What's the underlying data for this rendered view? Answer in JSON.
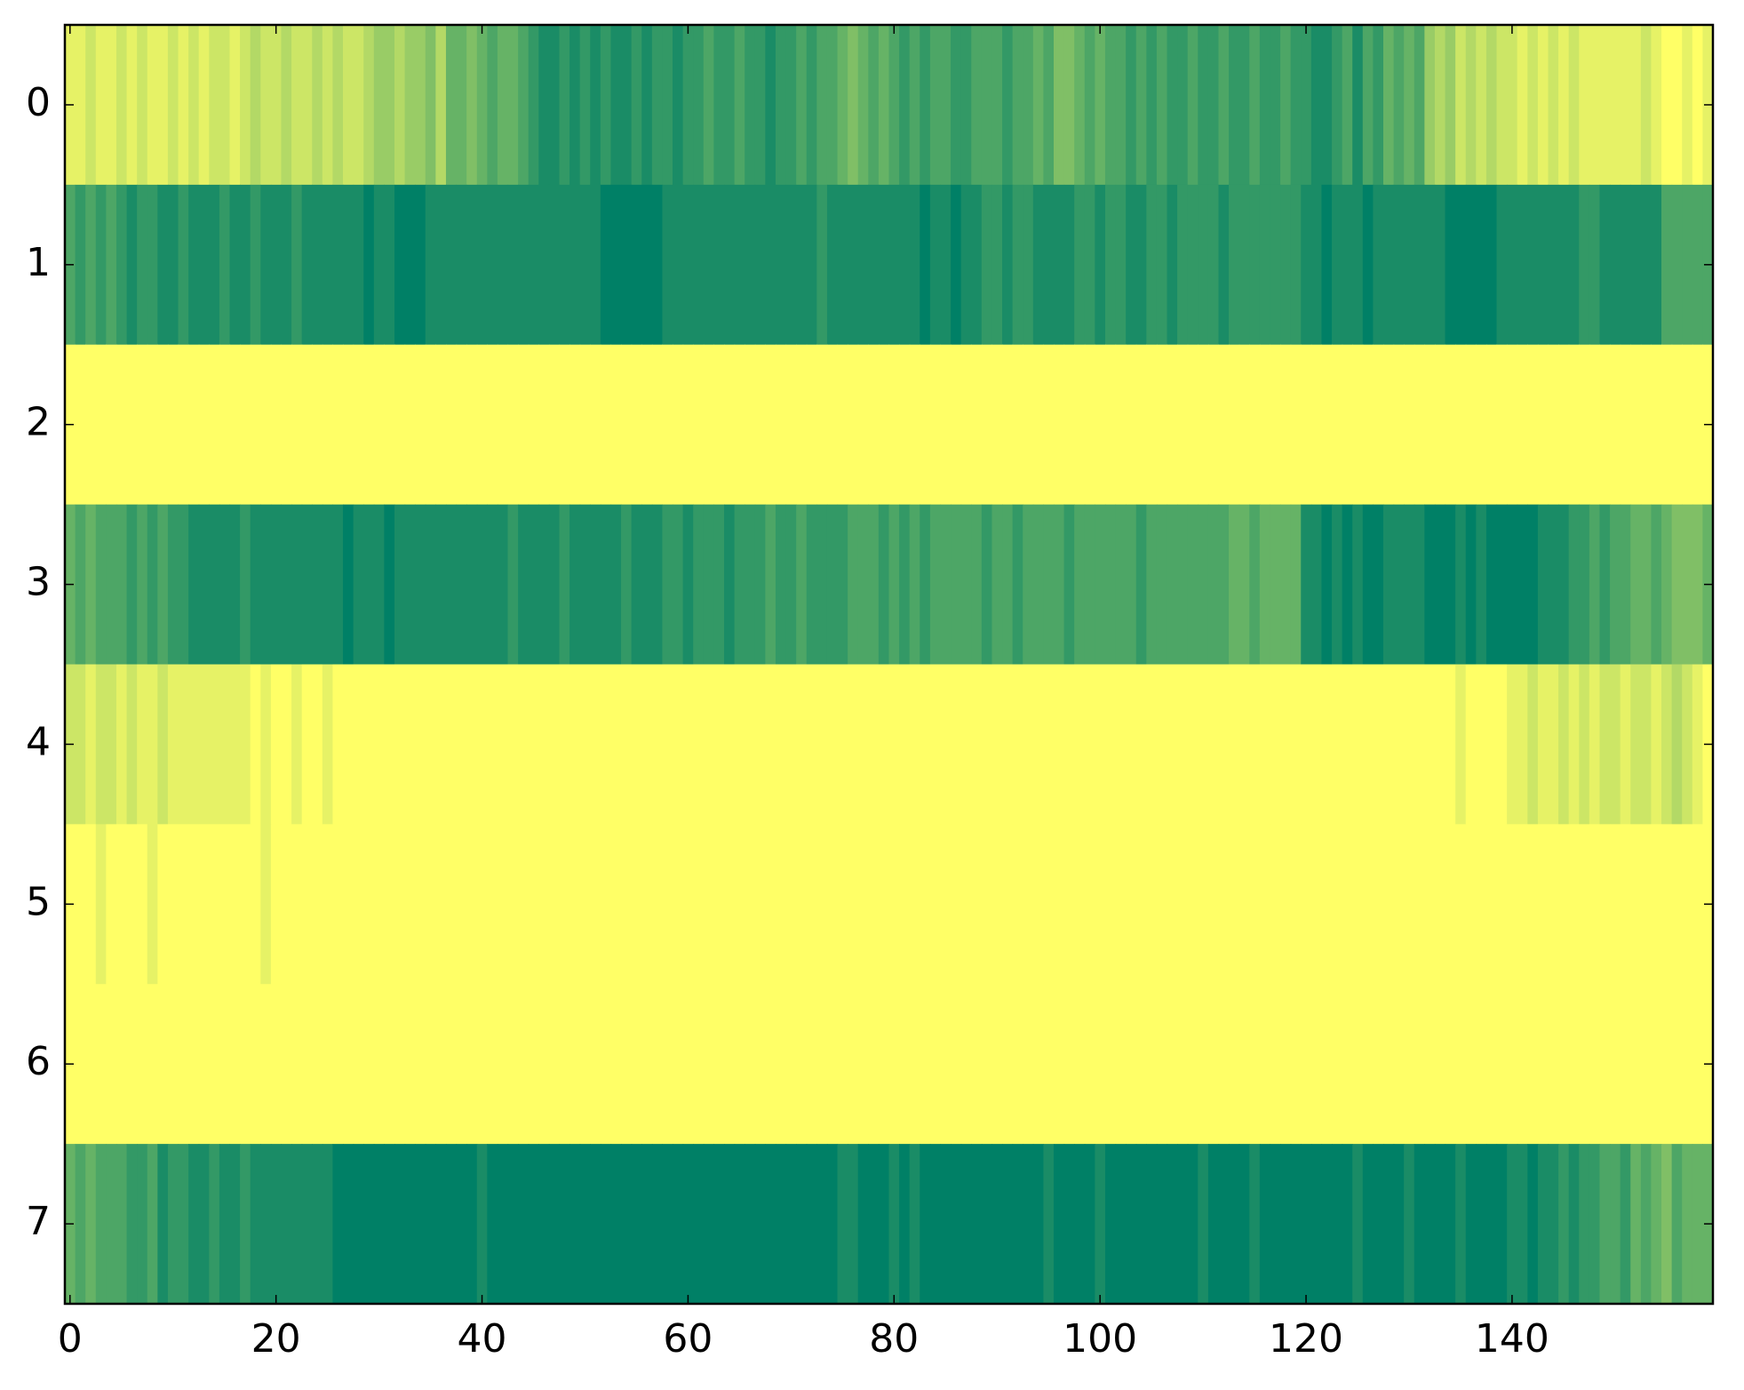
{
  "chart_data": {
    "type": "heatmap",
    "colormap": "summer",
    "clim": [
      0,
      1
    ],
    "xlim": [
      -0.5,
      159.5
    ],
    "ylim": [
      7.5,
      -0.5
    ],
    "xticks": [
      0,
      20,
      40,
      60,
      80,
      100,
      120,
      140
    ],
    "yticks": [
      0,
      1,
      2,
      3,
      4,
      5,
      6,
      7
    ],
    "z": [
      [
        0.9,
        0.9,
        0.8,
        0.9,
        0.9,
        0.8,
        0.9,
        0.8,
        0.9,
        0.9,
        0.8,
        0.9,
        0.8,
        0.9,
        0.8,
        0.8,
        0.9,
        0.8,
        0.7,
        0.8,
        0.8,
        0.7,
        0.8,
        0.8,
        0.7,
        0.8,
        0.7,
        0.8,
        0.8,
        0.7,
        0.6,
        0.6,
        0.7,
        0.6,
        0.6,
        0.5,
        0.7,
        0.4,
        0.4,
        0.5,
        0.4,
        0.3,
        0.4,
        0.4,
        0.3,
        0.2,
        0.1,
        0.1,
        0.2,
        0.1,
        0.2,
        0.1,
        0.2,
        0.1,
        0.1,
        0.2,
        0.1,
        0.2,
        0.2,
        0.1,
        0.2,
        0.2,
        0.3,
        0.2,
        0.2,
        0.3,
        0.2,
        0.2,
        0.1,
        0.2,
        0.2,
        0.3,
        0.2,
        0.3,
        0.3,
        0.4,
        0.5,
        0.4,
        0.3,
        0.4,
        0.3,
        0.2,
        0.3,
        0.2,
        0.3,
        0.3,
        0.2,
        0.2,
        0.3,
        0.3,
        0.3,
        0.2,
        0.3,
        0.3,
        0.4,
        0.3,
        0.5,
        0.5,
        0.4,
        0.3,
        0.4,
        0.3,
        0.3,
        0.2,
        0.3,
        0.2,
        0.3,
        0.2,
        0.2,
        0.3,
        0.2,
        0.2,
        0.3,
        0.2,
        0.2,
        0.3,
        0.2,
        0.2,
        0.3,
        0.2,
        0.2,
        0.1,
        0.1,
        0.2,
        0.3,
        0.1,
        0.3,
        0.2,
        0.4,
        0.3,
        0.4,
        0.3,
        0.6,
        0.7,
        0.6,
        0.8,
        0.7,
        0.8,
        0.7,
        0.8,
        0.8,
        0.9,
        0.8,
        0.9,
        0.8,
        0.9,
        0.8,
        0.9,
        0.9,
        0.9,
        0.9,
        0.9,
        0.9,
        0.8,
        0.9,
        1,
        1,
        0.9,
        1,
        0.9
      ],
      [
        0.3,
        0.2,
        0.3,
        0.2,
        0.3,
        0.2,
        0.1,
        0.2,
        0.2,
        0.1,
        0.1,
        0.2,
        0.1,
        0.1,
        0.1,
        0.2,
        0.1,
        0.1,
        0.2,
        0.1,
        0.1,
        0.1,
        0.2,
        0.1,
        0.1,
        0.1,
        0.1,
        0.1,
        0.1,
        0,
        0.1,
        0.1,
        0,
        0,
        0,
        0.1,
        0.1,
        0.1,
        0.1,
        0.1,
        0.1,
        0.1,
        0.1,
        0.1,
        0.1,
        0.1,
        0.1,
        0.1,
        0.1,
        0.1,
        0.1,
        0.1,
        0,
        0,
        0,
        0,
        0,
        0,
        0.1,
        0.1,
        0.1,
        0.1,
        0.1,
        0.1,
        0.1,
        0.1,
        0.1,
        0.1,
        0.1,
        0.1,
        0.1,
        0.1,
        0.1,
        0.2,
        0.1,
        0.1,
        0.1,
        0.1,
        0.1,
        0.1,
        0.1,
        0.1,
        0.1,
        0,
        0.1,
        0.1,
        0,
        0.1,
        0.1,
        0.2,
        0.2,
        0.1,
        0.2,
        0.2,
        0.1,
        0.1,
        0.1,
        0.1,
        0.2,
        0.2,
        0.1,
        0.2,
        0.2,
        0.1,
        0.1,
        0.2,
        0.2,
        0.1,
        0.2,
        0.2,
        0.2,
        0.2,
        0.1,
        0.2,
        0.2,
        0.2,
        0.2,
        0.2,
        0.2,
        0.2,
        0.1,
        0.1,
        0,
        0.1,
        0.1,
        0.1,
        0,
        0.1,
        0.1,
        0.1,
        0.1,
        0.1,
        0.1,
        0.1,
        0,
        0,
        0,
        0,
        0,
        0.1,
        0.1,
        0.1,
        0.1,
        0.1,
        0.1,
        0.1,
        0.1,
        0.2,
        0.2,
        0.1,
        0.1,
        0.1,
        0.1,
        0.1,
        0.1,
        0.3,
        0.3,
        0.3,
        0.3,
        0.3
      ],
      [
        1,
        1,
        1,
        1,
        1,
        1,
        1,
        1,
        1,
        1,
        1,
        1,
        1,
        1,
        1,
        1,
        1,
        1,
        1,
        1,
        1,
        1,
        1,
        1,
        1,
        1,
        1,
        1,
        1,
        1,
        1,
        1,
        1,
        1,
        1,
        1,
        1,
        1,
        1,
        1,
        1,
        1,
        1,
        1,
        1,
        1,
        1,
        1,
        1,
        1,
        1,
        1,
        1,
        1,
        1,
        1,
        1,
        1,
        1,
        1,
        1,
        1,
        1,
        1,
        1,
        1,
        1,
        1,
        1,
        1,
        1,
        1,
        1,
        1,
        1,
        1,
        1,
        1,
        1,
        1,
        1,
        1,
        1,
        1,
        1,
        1,
        1,
        1,
        1,
        1,
        1,
        1,
        1,
        1,
        1,
        1,
        1,
        1,
        1,
        1,
        1,
        1,
        1,
        1,
        1,
        1,
        1,
        1,
        1,
        1,
        1,
        1,
        1,
        1,
        1,
        1,
        1,
        1,
        1,
        1,
        1,
        1,
        1,
        1,
        1,
        1,
        1,
        1,
        1,
        1,
        1,
        1,
        1,
        1,
        1,
        1,
        1,
        1,
        1,
        1,
        1,
        1,
        1,
        1,
        1,
        1,
        1,
        1,
        1,
        1,
        1,
        1,
        1,
        1,
        1,
        1,
        1,
        1,
        1,
        1
      ],
      [
        0.4,
        0.3,
        0.4,
        0.3,
        0.3,
        0.3,
        0.2,
        0.3,
        0.2,
        0.3,
        0.2,
        0.2,
        0.1,
        0.1,
        0.1,
        0.1,
        0.1,
        0.2,
        0.1,
        0.1,
        0.1,
        0.1,
        0.1,
        0.1,
        0.1,
        0.1,
        0.1,
        0,
        0.1,
        0.1,
        0.1,
        0,
        0.1,
        0.1,
        0.1,
        0.1,
        0.1,
        0.1,
        0.1,
        0.1,
        0.1,
        0.1,
        0.1,
        0.2,
        0.1,
        0.1,
        0.1,
        0.1,
        0.2,
        0.1,
        0.1,
        0.1,
        0.1,
        0.1,
        0.2,
        0.1,
        0.1,
        0.1,
        0.2,
        0.2,
        0.1,
        0.2,
        0.2,
        0.2,
        0.1,
        0.2,
        0.2,
        0.2,
        0.3,
        0.2,
        0.2,
        0.3,
        0.2,
        0.2,
        0.2,
        0.2,
        0.3,
        0.3,
        0.3,
        0.2,
        0.3,
        0.2,
        0.3,
        0.2,
        0.3,
        0.3,
        0.3,
        0.3,
        0.3,
        0.2,
        0.3,
        0.3,
        0.2,
        0.3,
        0.3,
        0.3,
        0.3,
        0.2,
        0.3,
        0.3,
        0.3,
        0.3,
        0.3,
        0.3,
        0.2,
        0.3,
        0.3,
        0.3,
        0.3,
        0.3,
        0.3,
        0.3,
        0.3,
        0.4,
        0.4,
        0.3,
        0.4,
        0.4,
        0.4,
        0.4,
        0.1,
        0.1,
        0,
        0.1,
        0,
        0.1,
        0,
        0,
        0.1,
        0.1,
        0.1,
        0.1,
        0,
        0,
        0,
        0.1,
        0,
        0.1,
        0,
        0,
        0,
        0,
        0,
        0.1,
        0.1,
        0.1,
        0.2,
        0.2,
        0.3,
        0.2,
        0.3,
        0.3,
        0.4,
        0.4,
        0.3,
        0.4,
        0.5,
        0.5,
        0.5,
        0.4
      ],
      [
        0.8,
        0.8,
        0.9,
        0.8,
        0.8,
        0.9,
        0.8,
        0.9,
        0.9,
        0.8,
        0.9,
        0.9,
        0.9,
        0.9,
        0.9,
        0.9,
        0.9,
        0.9,
        1,
        0.9,
        1,
        1,
        0.9,
        1,
        1,
        0.9,
        1,
        1,
        1,
        1,
        1,
        1,
        1,
        1,
        1,
        1,
        1,
        1,
        1,
        1,
        1,
        1,
        1,
        1,
        1,
        1,
        1,
        1,
        1,
        1,
        1,
        1,
        1,
        1,
        1,
        1,
        1,
        1,
        1,
        1,
        1,
        1,
        1,
        1,
        1,
        1,
        1,
        1,
        1,
        1,
        1,
        1,
        1,
        1,
        1,
        1,
        1,
        1,
        1,
        1,
        1,
        1,
        1,
        1,
        1,
        1,
        1,
        1,
        1,
        1,
        1,
        1,
        1,
        1,
        1,
        1,
        1,
        1,
        1,
        1,
        1,
        1,
        1,
        1,
        1,
        1,
        1,
        1,
        1,
        1,
        1,
        1,
        1,
        1,
        1,
        1,
        1,
        1,
        1,
        1,
        1,
        1,
        1,
        1,
        1,
        1,
        1,
        1,
        1,
        1,
        1,
        1,
        1,
        1,
        1,
        0.9,
        1,
        1,
        1,
        1,
        0.9,
        0.9,
        0.8,
        0.9,
        0.9,
        0.8,
        0.9,
        0.8,
        0.9,
        0.8,
        0.8,
        0.9,
        0.8,
        0.8,
        0.9,
        0.8,
        0.7,
        0.8,
        0.9,
        1
      ],
      [
        1,
        1,
        1,
        0.9,
        1,
        1,
        1,
        1,
        0.9,
        1,
        1,
        1,
        1,
        1,
        1,
        1,
        1,
        1,
        1,
        0.9,
        1,
        1,
        1,
        1,
        1,
        1,
        1,
        1,
        1,
        1,
        1,
        1,
        1,
        1,
        1,
        1,
        1,
        1,
        1,
        1,
        1,
        1,
        1,
        1,
        1,
        1,
        1,
        1,
        1,
        1,
        1,
        1,
        1,
        1,
        1,
        1,
        1,
        1,
        1,
        1,
        1,
        1,
        1,
        1,
        1,
        1,
        1,
        1,
        1,
        1,
        1,
        1,
        1,
        1,
        1,
        1,
        1,
        1,
        1,
        1,
        1,
        1,
        1,
        1,
        1,
        1,
        1,
        1,
        1,
        1,
        1,
        1,
        1,
        1,
        1,
        1,
        1,
        1,
        1,
        1,
        1,
        1,
        1,
        1,
        1,
        1,
        1,
        1,
        1,
        1,
        1,
        1,
        1,
        1,
        1,
        1,
        1,
        1,
        1,
        1,
        1,
        1,
        1,
        1,
        1,
        1,
        1,
        1,
        1,
        1,
        1,
        1,
        1,
        1,
        1,
        1,
        1,
        1,
        1,
        1,
        1,
        1,
        1,
        1,
        1,
        1,
        1,
        1,
        1,
        1,
        1,
        1,
        1,
        1,
        1,
        1,
        1,
        1,
        1,
        1
      ],
      [
        1,
        1,
        1,
        1,
        1,
        1,
        1,
        1,
        1,
        1,
        1,
        1,
        1,
        1,
        1,
        1,
        1,
        1,
        1,
        1,
        1,
        1,
        1,
        1,
        1,
        1,
        1,
        1,
        1,
        1,
        1,
        1,
        1,
        1,
        1,
        1,
        1,
        1,
        1,
        1,
        1,
        1,
        1,
        1,
        1,
        1,
        1,
        1,
        1,
        1,
        1,
        1,
        1,
        1,
        1,
        1,
        1,
        1,
        1,
        1,
        1,
        1,
        1,
        1,
        1,
        1,
        1,
        1,
        1,
        1,
        1,
        1,
        1,
        1,
        1,
        1,
        1,
        1,
        1,
        1,
        1,
        1,
        1,
        1,
        1,
        1,
        1,
        1,
        1,
        1,
        1,
        1,
        1,
        1,
        1,
        1,
        1,
        1,
        1,
        1,
        1,
        1,
        1,
        1,
        1,
        1,
        1,
        1,
        1,
        1,
        1,
        1,
        1,
        1,
        1,
        1,
        1,
        1,
        1,
        1,
        1,
        1,
        1,
        1,
        1,
        1,
        1,
        1,
        1,
        1,
        1,
        1,
        1,
        1,
        1,
        1,
        1,
        1,
        1,
        1,
        1,
        1,
        1,
        1,
        1,
        1,
        1,
        1,
        1,
        1,
        1,
        1,
        1,
        1,
        1,
        1,
        1,
        1,
        1,
        1
      ],
      [
        0.4,
        0.3,
        0.4,
        0.3,
        0.3,
        0.3,
        0.2,
        0.2,
        0.3,
        0.1,
        0.2,
        0.2,
        0.1,
        0.1,
        0.2,
        0.1,
        0.1,
        0.2,
        0.1,
        0.1,
        0.1,
        0.1,
        0.1,
        0.1,
        0.1,
        0.1,
        0,
        0,
        0,
        0,
        0,
        0,
        0,
        0,
        0,
        0,
        0,
        0,
        0,
        0,
        0.1,
        0,
        0,
        0,
        0,
        0,
        0,
        0,
        0,
        0,
        0,
        0,
        0,
        0,
        0,
        0,
        0,
        0,
        0,
        0,
        0,
        0,
        0,
        0,
        0,
        0,
        0,
        0,
        0,
        0,
        0,
        0,
        0,
        0,
        0,
        0.1,
        0.1,
        0,
        0,
        0,
        0.1,
        0,
        0.1,
        0,
        0,
        0,
        0,
        0,
        0,
        0,
        0,
        0,
        0,
        0,
        0,
        0.1,
        0,
        0,
        0,
        0,
        0.1,
        0,
        0,
        0,
        0,
        0,
        0,
        0,
        0,
        0,
        0.1,
        0,
        0,
        0,
        0,
        0.1,
        0,
        0,
        0,
        0,
        0,
        0,
        0,
        0,
        0,
        0.1,
        0,
        0,
        0,
        0,
        0.1,
        0,
        0,
        0,
        0,
        0.1,
        0,
        0,
        0,
        0,
        0.1,
        0.1,
        0,
        0.1,
        0.1,
        0.2,
        0.1,
        0.2,
        0.2,
        0.3,
        0.3,
        0.2,
        0.4,
        0.3,
        0.4,
        0.5,
        0.3,
        0.4,
        0.4,
        0.4
      ]
    ]
  }
}
